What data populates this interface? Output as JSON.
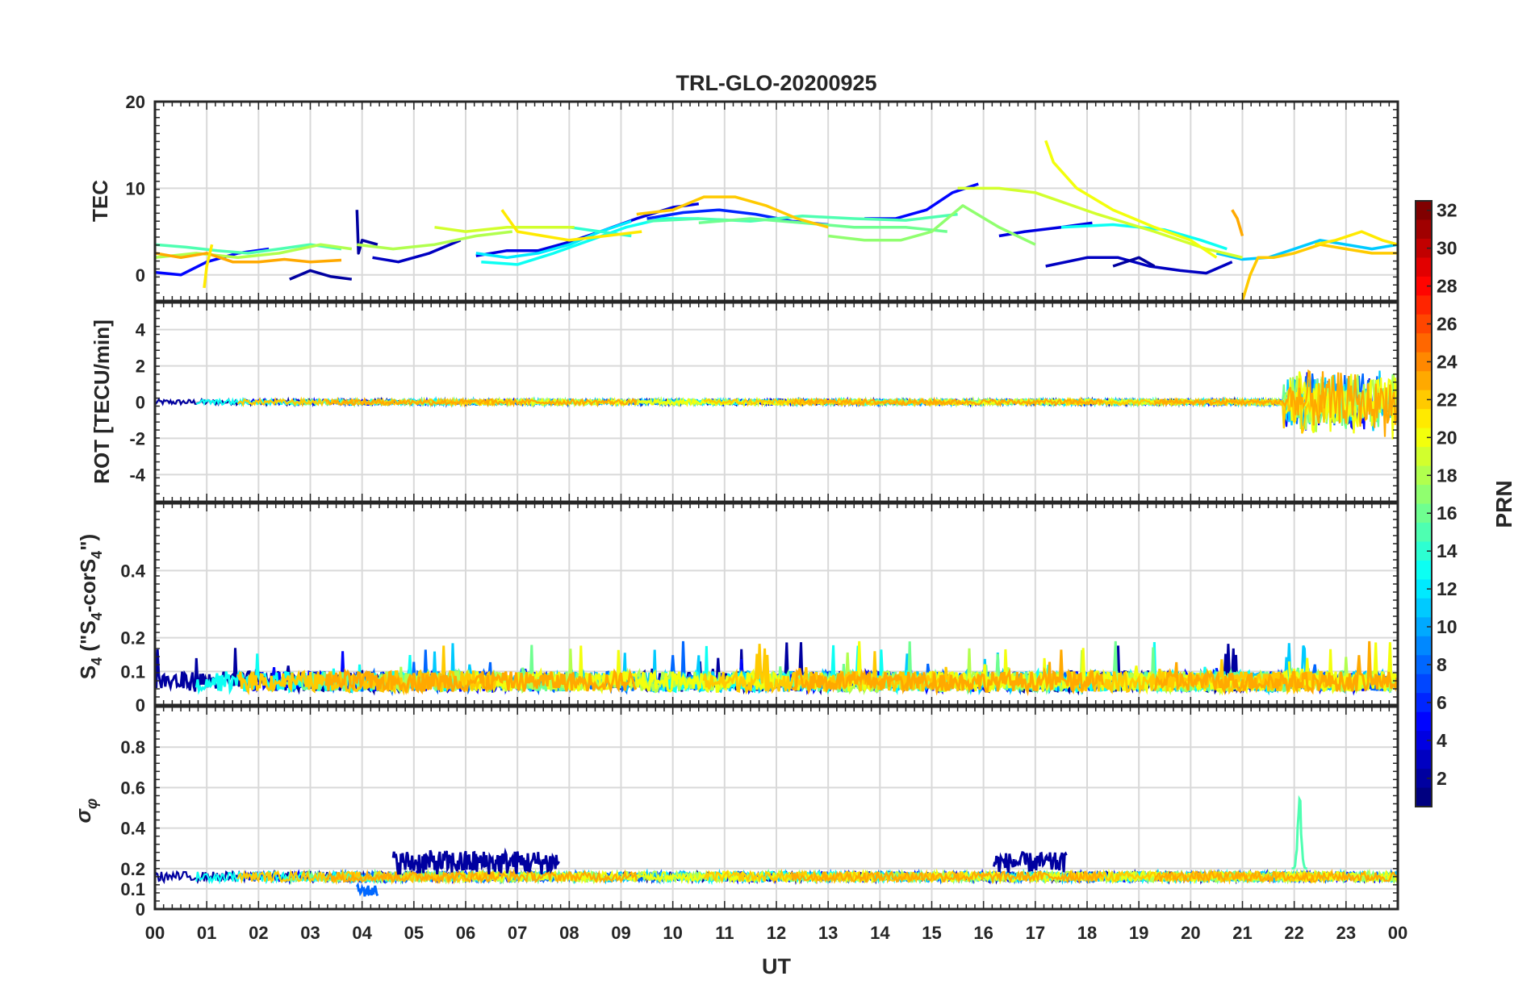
{
  "chart_data": {
    "type": "line",
    "title": "TRL-GLO-20200925",
    "xlabel": "UT",
    "x_tick_labels": [
      "00",
      "01",
      "02",
      "03",
      "04",
      "05",
      "06",
      "07",
      "08",
      "09",
      "10",
      "11",
      "12",
      "13",
      "14",
      "15",
      "16",
      "17",
      "18",
      "19",
      "20",
      "21",
      "22",
      "23",
      "00"
    ],
    "xlim": [
      0,
      24
    ],
    "grid": true,
    "colorbar": {
      "label": "PRN",
      "range": [
        1,
        32
      ],
      "ticks": [
        2,
        4,
        6,
        8,
        10,
        12,
        14,
        16,
        18,
        20,
        22,
        24,
        26,
        28,
        30,
        32
      ],
      "tick_labels": [
        "2",
        "4",
        "6",
        "8",
        "10",
        "12",
        "14",
        "16",
        "18",
        "20",
        "22",
        "24",
        "26",
        "28",
        "30",
        "32"
      ],
      "colormap": "jet"
    },
    "panels": [
      {
        "id": "tec",
        "ylabel": "TEC",
        "ylim": [
          -3,
          20
        ],
        "y_ticks": [
          0,
          10,
          20
        ],
        "y_tick_labels": [
          "0",
          "10",
          "20"
        ],
        "series": [
          {
            "prn": 2,
            "x": [
              2.6,
              3.0,
              3.4,
              3.8
            ],
            "y": [
              -0.5,
              0.5,
              -0.2,
              -0.5
            ]
          },
          {
            "prn": 2,
            "x": [
              3.9,
              3.93,
              4.0,
              4.3
            ],
            "y": [
              7.5,
              2.5,
              4.0,
              3.5
            ]
          },
          {
            "prn": 3,
            "x": [
              4.2,
              4.7,
              5.3,
              5.9
            ],
            "y": [
              2.0,
              1.5,
              2.5,
              4.0
            ]
          },
          {
            "prn": 5,
            "x": [
              0.0,
              0.5,
              1.0,
              1.6,
              2.2
            ],
            "y": [
              0.3,
              0.0,
              1.5,
              2.5,
              3.0
            ]
          },
          {
            "prn": 4,
            "x": [
              6.2,
              6.8,
              7.4,
              8.0,
              8.6,
              9.3,
              10.0,
              10.5
            ],
            "y": [
              2.2,
              2.8,
              2.8,
              3.8,
              5.0,
              6.5,
              7.8,
              8.2
            ]
          },
          {
            "prn": 6,
            "x": [
              9.5,
              10.2,
              10.9,
              11.6,
              12.3,
              13.0
            ],
            "y": [
              6.5,
              7.2,
              7.5,
              7.0,
              6.2,
              5.8
            ]
          },
          {
            "prn": 5,
            "x": [
              13.7,
              14.3,
              14.9,
              15.4,
              15.9
            ],
            "y": [
              6.5,
              6.5,
              7.5,
              9.5,
              10.5
            ]
          },
          {
            "prn": 3,
            "x": [
              17.2,
              18.0,
              18.6,
              19.2,
              19.8,
              20.3,
              20.8
            ],
            "y": [
              1.0,
              2.0,
              2.0,
              1.0,
              0.5,
              0.2,
              1.5
            ]
          },
          {
            "prn": 4,
            "x": [
              16.3,
              16.8,
              17.5,
              18.1
            ],
            "y": [
              4.5,
              5.0,
              5.5,
              6.0
            ]
          },
          {
            "prn": 2,
            "x": [
              18.5,
              19.0,
              19.3
            ],
            "y": [
              1.0,
              2.0,
              1.0
            ]
          },
          {
            "prn": 12,
            "x": [
              6.2,
              6.8,
              7.4,
              8.0,
              8.6,
              9.2
            ],
            "y": [
              2.5,
              2.0,
              2.5,
              3.5,
              5.0,
              6.2
            ]
          },
          {
            "prn": 11,
            "x": [
              20.5,
              21.0,
              21.5,
              22.0,
              22.5,
              23.0,
              23.5,
              24.0
            ],
            "y": [
              2.5,
              1.8,
              2.0,
              3.0,
              4.0,
              3.5,
              3.0,
              3.5
            ]
          },
          {
            "prn": 13,
            "x": [
              6.3,
              7.0,
              7.7,
              8.4,
              9.1,
              9.8,
              10.5
            ],
            "y": [
              1.5,
              1.2,
              2.5,
              4.0,
              5.5,
              6.5,
              6.5
            ]
          },
          {
            "prn": 13,
            "x": [
              17.5,
              18.5,
              19.5,
              20.2,
              20.7
            ],
            "y": [
              5.5,
              5.8,
              5.2,
              4.0,
              3.0
            ]
          },
          {
            "prn": 15,
            "x": [
              0.0,
              0.6,
              1.2,
              1.8,
              2.4,
              3.0,
              3.6
            ],
            "y": [
              3.5,
              3.2,
              2.8,
              2.5,
              3.0,
              3.5,
              3.0
            ]
          },
          {
            "prn": 15,
            "x": [
              9.5,
              10.5,
              11.5,
              12.5,
              13.5,
              14.5,
              15.5
            ],
            "y": [
              6.2,
              6.5,
              6.2,
              6.8,
              6.5,
              6.3,
              7.0
            ]
          },
          {
            "prn": 14,
            "x": [
              8.0,
              8.6,
              9.2
            ],
            "y": [
              5.5,
              5.0,
              4.5
            ]
          },
          {
            "prn": 16,
            "x": [
              10.5,
              11.5,
              12.5,
              13.5,
              14.5,
              15.3
            ],
            "y": [
              6.0,
              6.5,
              6.0,
              5.5,
              5.5,
              5.0
            ]
          },
          {
            "prn": 17,
            "x": [
              13.0,
              13.7,
              14.4,
              15.0,
              15.6,
              16.3,
              17.0
            ],
            "y": [
              4.5,
              4.0,
              4.0,
              5.0,
              8.0,
              5.5,
              3.5
            ]
          },
          {
            "prn": 18,
            "x": [
              0.0,
              0.8,
              1.6,
              2.4,
              3.2,
              3.8
            ],
            "y": [
              2.0,
              2.5,
              2.0,
              2.5,
              3.5,
              3.0
            ]
          },
          {
            "prn": 18,
            "x": [
              3.9,
              4.6,
              5.4,
              6.2,
              6.9
            ],
            "y": [
              3.5,
              3.0,
              3.5,
              4.5,
              5.0
            ]
          },
          {
            "prn": 19,
            "x": [
              5.4,
              6.0,
              6.8,
              7.5,
              8.1
            ],
            "y": [
              5.5,
              5.0,
              5.5,
              5.5,
              5.5
            ]
          },
          {
            "prn": 19,
            "x": [
              15.5,
              16.3,
              17.0,
              18.2,
              19.3,
              20.3,
              21.0
            ],
            "y": [
              10.0,
              10.0,
              9.5,
              7.0,
              5.0,
              3.0,
              2.0
            ]
          },
          {
            "prn": 20,
            "x": [
              17.2,
              17.35,
              17.8,
              18.5,
              19.3,
              20.0,
              20.5
            ],
            "y": [
              15.5,
              13.0,
              10.0,
              7.5,
              5.5,
              4.0,
              2.0
            ]
          },
          {
            "prn": 21,
            "x": [
              6.7,
              7.0,
              7.5,
              8.0,
              8.7,
              9.4
            ],
            "y": [
              7.5,
              5.0,
              4.5,
              4.0,
              4.5,
              5.0
            ]
          },
          {
            "prn": 22,
            "x": [
              9.3,
              10.0,
              10.6,
              11.2,
              11.8,
              12.4,
              13.0
            ],
            "y": [
              7.0,
              7.5,
              9.0,
              9.0,
              8.0,
              6.5,
              5.5
            ]
          },
          {
            "prn": 22,
            "x": [
              21.0,
              21.15,
              21.3,
              21.6,
              22.0,
              22.5,
              23.0,
              23.5,
              24.0
            ],
            "y": [
              -3.0,
              0.0,
              2.0,
              2.0,
              2.5,
              3.5,
              3.0,
              2.5,
              2.5
            ]
          },
          {
            "prn": 23,
            "x": [
              0.0,
              0.5,
              1.0,
              1.5,
              2.0,
              2.5,
              3.0,
              3.6
            ],
            "y": [
              2.5,
              2.0,
              2.5,
              1.5,
              1.5,
              1.8,
              1.5,
              1.7
            ]
          },
          {
            "prn": 21,
            "x": [
              0.95,
              1.0,
              1.1
            ],
            "y": [
              -1.5,
              1.0,
              3.5
            ]
          },
          {
            "prn": 23,
            "x": [
              20.8,
              20.9,
              21.0
            ],
            "y": [
              7.5,
              6.5,
              4.5
            ]
          },
          {
            "prn": 21,
            "x": [
              22.4,
              22.8,
              23.3,
              23.7,
              24.0
            ],
            "y": [
              3.5,
              4.0,
              5.0,
              4.0,
              3.5
            ]
          }
        ]
      },
      {
        "id": "rot",
        "ylabel": "ROT [TECU/min]",
        "ylim": [
          -5.5,
          5.5
        ],
        "y_ticks": [
          -4,
          -2,
          0,
          2,
          4
        ],
        "y_tick_labels": [
          "-4",
          "-2",
          "0",
          "2",
          "4"
        ],
        "baseline": 0,
        "noise_amplitude": 0.15,
        "bursts": [
          {
            "x_start": 21.8,
            "x_end": 24.0,
            "amplitude": 1.5
          },
          {
            "x_start": 23.9,
            "x_end": 24.0,
            "amplitude": 1.8
          }
        ]
      },
      {
        "id": "s4",
        "ylabel": "S4 (\"S4-corS4\")",
        "ylabel_parts": {
          "s_letter": "S",
          "subscript_four": "4",
          "paren_open": " (\"S",
          "mid": "-corS",
          "close": "\")"
        },
        "ylim": [
          0,
          0.6
        ],
        "y_ticks": [
          0,
          0.1,
          0.2,
          0.4
        ],
        "y_tick_labels": [
          "0",
          "0.1",
          "0.2",
          "0.4"
        ],
        "baseline": 0.04,
        "noise_amplitude": 0.06,
        "spike_max": 0.2
      },
      {
        "id": "sigma_phi",
        "ylabel": "σφ",
        "ylabel_parts": {
          "sigma": "σ",
          "phi": "φ"
        },
        "ylim": [
          0,
          1
        ],
        "y_ticks": [
          0,
          0.1,
          0.2,
          0.4,
          0.6,
          0.8
        ],
        "y_tick_labels": [
          "0",
          "0.1",
          "0.2",
          "0.4",
          "0.6",
          "0.8"
        ],
        "baseline": 0.15,
        "noise_amplitude": 0.05,
        "features": [
          {
            "prn": 2,
            "x_start": 4.6,
            "x_end": 7.8,
            "level": 0.23,
            "amplitude": 0.06
          },
          {
            "prn": 2,
            "x_start": 16.2,
            "x_end": 17.6,
            "level": 0.23,
            "amplitude": 0.05
          },
          {
            "prn": 15,
            "x_start": 21.95,
            "x_end": 22.25,
            "level": 0.2,
            "peak": 0.58
          },
          {
            "prn": 8,
            "x_start": 3.9,
            "x_end": 4.3,
            "level": 0.09,
            "amplitude": 0.03
          }
        ]
      }
    ]
  }
}
